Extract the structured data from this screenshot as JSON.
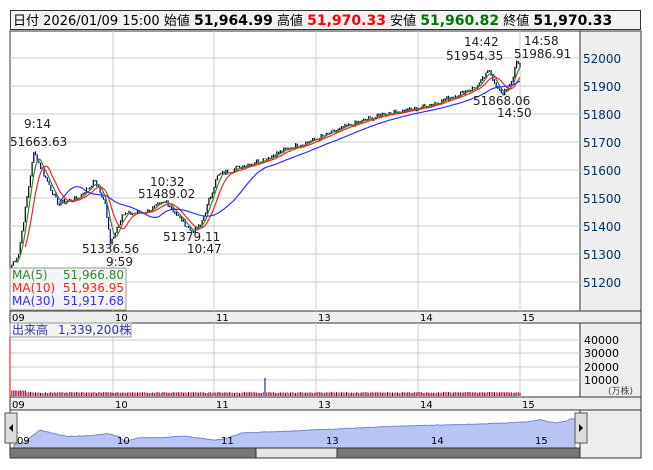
{
  "header": {
    "date_label": "日付",
    "date": "2026/01/09 15:00",
    "open_label": "始値",
    "open": "51,964.99",
    "high_label": "高値",
    "high": "51,970.33",
    "low_label": "安値",
    "low": "51,960.82",
    "close_label": "終値",
    "close": "51,970.33"
  },
  "colors": {
    "high": "#ff0000",
    "low": "#007000",
    "ma5": "#2e8b2e",
    "ma10": "#ff2020",
    "ma30": "#3030ff",
    "volume_up": "#ff0000",
    "volume_down": "#000099",
    "nav_fill": "#b8c4f4"
  },
  "legend": {
    "ma5_label": "MA(5)",
    "ma5": "51,966.80",
    "ma10_label": "MA(10)",
    "ma10": "51,936.95",
    "ma30_label": "MA(30)",
    "ma30": "51,917.68"
  },
  "annotations": [
    {
      "time": "9:14",
      "value": "51663.63"
    },
    {
      "time": "9:59",
      "value": "51336.56"
    },
    {
      "time": "10:32",
      "value": "51489.02"
    },
    {
      "time": "10:47",
      "value": "51379.11"
    },
    {
      "time": "14:42",
      "value": "51954.35"
    },
    {
      "time": "14:50",
      "value": "51868.06"
    },
    {
      "time": "14:58",
      "value": "51986.91"
    }
  ],
  "volume": {
    "label": "出来高",
    "value": "1,339,200株",
    "unit": "(万株)",
    "ticks": [
      "40000",
      "30000",
      "20000",
      "10000"
    ]
  },
  "chart_data": {
    "type": "line",
    "price_ticks": [
      "52000",
      "51900",
      "51800",
      "51700",
      "51600",
      "51500",
      "51400",
      "51300",
      "51200"
    ],
    "time_ticks": [
      "09",
      "10",
      "11",
      "13",
      "14",
      "15"
    ],
    "anchors": [
      [
        0,
        51250
      ],
      [
        5,
        51300
      ],
      [
        14,
        51663.63
      ],
      [
        22,
        51560
      ],
      [
        28,
        51480
      ],
      [
        40,
        51500
      ],
      [
        50,
        51560
      ],
      [
        56,
        51480
      ],
      [
        59,
        51336.56
      ],
      [
        66,
        51440
      ],
      [
        80,
        51450
      ],
      [
        92,
        51489.02
      ],
      [
        98,
        51440
      ],
      [
        107,
        51379.11
      ],
      [
        112,
        51400
      ],
      [
        122,
        51580
      ],
      [
        135,
        51610
      ],
      [
        150,
        51640
      ],
      [
        165,
        51680
      ],
      [
        180,
        51710
      ],
      [
        200,
        51760
      ],
      [
        220,
        51800
      ],
      [
        240,
        51820
      ],
      [
        260,
        51860
      ],
      [
        275,
        51900
      ],
      [
        282,
        51954.35
      ],
      [
        287,
        51890
      ],
      [
        290,
        51868.06
      ],
      [
        296,
        51930
      ],
      [
        298,
        51986.91
      ],
      [
        300,
        51970.33
      ]
    ]
  },
  "navigator": {
    "labels": [
      "09",
      "10",
      "11",
      "13",
      "14",
      "15"
    ]
  }
}
